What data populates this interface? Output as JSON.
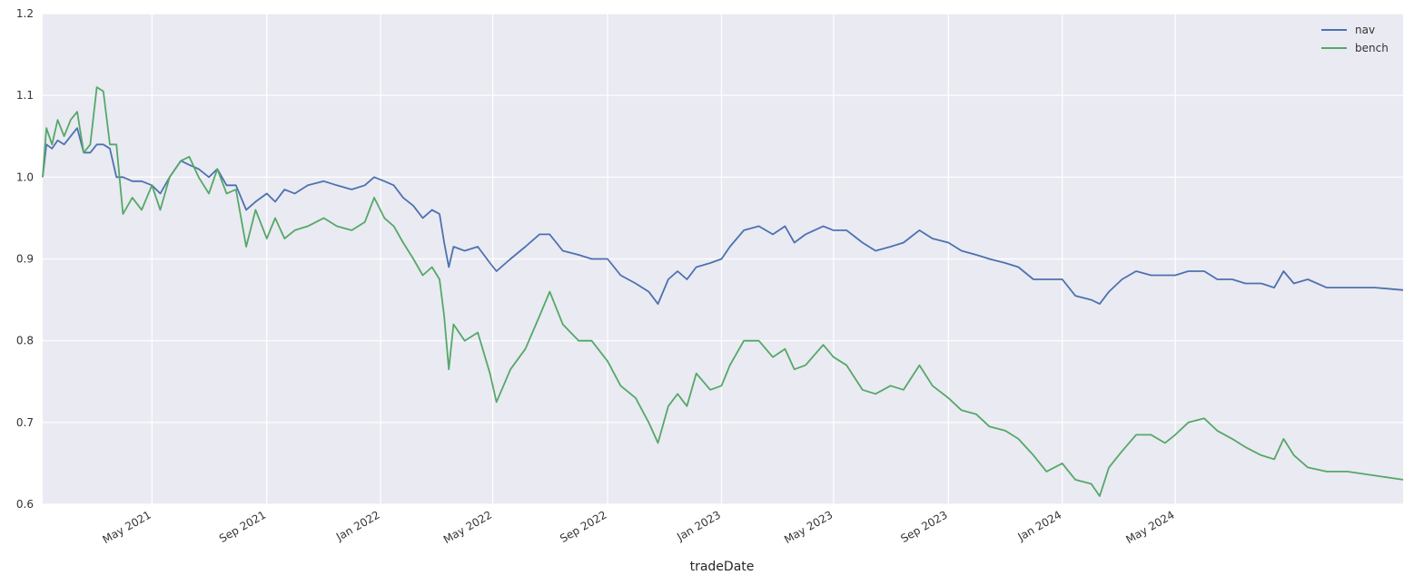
{
  "chart_data": {
    "type": "line",
    "title": "",
    "xlabel": "tradeDate",
    "ylabel": "",
    "x_range": [
      "2021-01-04",
      "2024-12-31"
    ],
    "ylim": [
      0.6,
      1.2
    ],
    "grid": true,
    "legend_position": "top-right",
    "y_ticks": [
      0.6,
      0.7,
      0.8,
      0.9,
      1.0,
      1.1,
      1.2
    ],
    "y_tick_labels": [
      "0.6",
      "0.7",
      "0.8",
      "0.9",
      "1.0",
      "1.1",
      "1.2"
    ],
    "x_ticks": [
      "2021-05-01",
      "2021-09-01",
      "2022-01-01",
      "2022-05-01",
      "2022-09-01",
      "2023-01-01",
      "2023-05-01",
      "2023-09-01",
      "2024-01-01",
      "2024-05-01"
    ],
    "x_tick_labels": [
      "May 2021",
      "Sep 2021",
      "Jan 2022",
      "May 2022",
      "Sep 2022",
      "Jan 2023",
      "May 2023",
      "Sep 2023",
      "Jan 2024",
      "May 2024"
    ],
    "series": [
      {
        "name": "nav",
        "color": "#4c72b0",
        "points": [
          [
            "2021-01-04",
            1.0
          ],
          [
            "2021-01-08",
            1.04
          ],
          [
            "2021-01-14",
            1.035
          ],
          [
            "2021-01-20",
            1.045
          ],
          [
            "2021-01-27",
            1.04
          ],
          [
            "2021-02-03",
            1.05
          ],
          [
            "2021-02-10",
            1.06
          ],
          [
            "2021-02-17",
            1.03
          ],
          [
            "2021-02-24",
            1.03
          ],
          [
            "2021-03-03",
            1.04
          ],
          [
            "2021-03-10",
            1.04
          ],
          [
            "2021-03-17",
            1.035
          ],
          [
            "2021-03-24",
            1.0
          ],
          [
            "2021-03-31",
            1.0
          ],
          [
            "2021-04-10",
            0.995
          ],
          [
            "2021-04-20",
            0.995
          ],
          [
            "2021-05-01",
            0.99
          ],
          [
            "2021-05-10",
            0.98
          ],
          [
            "2021-05-20",
            1.0
          ],
          [
            "2021-06-01",
            1.02
          ],
          [
            "2021-06-10",
            1.015
          ],
          [
            "2021-06-20",
            1.01
          ],
          [
            "2021-07-01",
            1.0
          ],
          [
            "2021-07-10",
            1.01
          ],
          [
            "2021-07-20",
            0.99
          ],
          [
            "2021-07-30",
            0.99
          ],
          [
            "2021-08-10",
            0.96
          ],
          [
            "2021-08-20",
            0.97
          ],
          [
            "2021-09-01",
            0.98
          ],
          [
            "2021-09-10",
            0.97
          ],
          [
            "2021-09-20",
            0.985
          ],
          [
            "2021-10-01",
            0.98
          ],
          [
            "2021-10-15",
            0.99
          ],
          [
            "2021-11-01",
            0.995
          ],
          [
            "2021-11-15",
            0.99
          ],
          [
            "2021-12-01",
            0.985
          ],
          [
            "2021-12-15",
            0.99
          ],
          [
            "2021-12-25",
            1.0
          ],
          [
            "2022-01-05",
            0.995
          ],
          [
            "2022-01-15",
            0.99
          ],
          [
            "2022-01-25",
            0.975
          ],
          [
            "2022-02-05",
            0.965
          ],
          [
            "2022-02-15",
            0.95
          ],
          [
            "2022-02-25",
            0.96
          ],
          [
            "2022-03-05",
            0.955
          ],
          [
            "2022-03-10",
            0.92
          ],
          [
            "2022-03-15",
            0.89
          ],
          [
            "2022-03-20",
            0.915
          ],
          [
            "2022-04-01",
            0.91
          ],
          [
            "2022-04-15",
            0.915
          ],
          [
            "2022-04-28",
            0.895
          ],
          [
            "2022-05-05",
            0.885
          ],
          [
            "2022-05-20",
            0.9
          ],
          [
            "2022-06-05",
            0.915
          ],
          [
            "2022-06-20",
            0.93
          ],
          [
            "2022-07-01",
            0.93
          ],
          [
            "2022-07-15",
            0.91
          ],
          [
            "2022-08-01",
            0.905
          ],
          [
            "2022-08-15",
            0.9
          ],
          [
            "2022-09-01",
            0.9
          ],
          [
            "2022-09-15",
            0.88
          ],
          [
            "2022-10-01",
            0.87
          ],
          [
            "2022-10-15",
            0.86
          ],
          [
            "2022-10-25",
            0.845
          ],
          [
            "2022-11-05",
            0.875
          ],
          [
            "2022-11-15",
            0.885
          ],
          [
            "2022-11-25",
            0.875
          ],
          [
            "2022-12-05",
            0.89
          ],
          [
            "2022-12-20",
            0.895
          ],
          [
            "2023-01-01",
            0.9
          ],
          [
            "2023-01-10",
            0.915
          ],
          [
            "2023-01-25",
            0.935
          ],
          [
            "2023-02-10",
            0.94
          ],
          [
            "2023-02-25",
            0.93
          ],
          [
            "2023-03-10",
            0.94
          ],
          [
            "2023-03-20",
            0.92
          ],
          [
            "2023-04-01",
            0.93
          ],
          [
            "2023-04-20",
            0.94
          ],
          [
            "2023-05-01",
            0.935
          ],
          [
            "2023-05-15",
            0.935
          ],
          [
            "2023-06-01",
            0.92
          ],
          [
            "2023-06-15",
            0.91
          ],
          [
            "2023-07-01",
            0.915
          ],
          [
            "2023-07-15",
            0.92
          ],
          [
            "2023-08-01",
            0.935
          ],
          [
            "2023-08-15",
            0.925
          ],
          [
            "2023-09-01",
            0.92
          ],
          [
            "2023-09-15",
            0.91
          ],
          [
            "2023-10-01",
            0.905
          ],
          [
            "2023-10-15",
            0.9
          ],
          [
            "2023-11-01",
            0.895
          ],
          [
            "2023-11-15",
            0.89
          ],
          [
            "2023-12-01",
            0.875
          ],
          [
            "2023-12-15",
            0.875
          ],
          [
            "2024-01-01",
            0.875
          ],
          [
            "2024-01-15",
            0.855
          ],
          [
            "2024-02-01",
            0.85
          ],
          [
            "2024-02-10",
            0.845
          ],
          [
            "2024-02-20",
            0.86
          ],
          [
            "2024-03-05",
            0.875
          ],
          [
            "2024-03-20",
            0.885
          ],
          [
            "2024-04-05",
            0.88
          ],
          [
            "2024-04-20",
            0.88
          ],
          [
            "2024-05-01",
            0.88
          ],
          [
            "2024-05-15",
            0.885
          ],
          [
            "2024-06-01",
            0.885
          ],
          [
            "2024-06-15",
            0.875
          ],
          [
            "2024-07-01",
            0.875
          ],
          [
            "2024-07-15",
            0.87
          ],
          [
            "2024-08-01",
            0.87
          ],
          [
            "2024-08-15",
            0.865
          ],
          [
            "2024-08-25",
            0.885
          ],
          [
            "2024-09-05",
            0.87
          ],
          [
            "2024-09-20",
            0.875
          ],
          [
            "2024-10-10",
            0.865
          ],
          [
            "2024-11-01",
            0.865
          ],
          [
            "2024-12-01",
            0.865
          ],
          [
            "2024-12-31",
            0.862
          ]
        ]
      },
      {
        "name": "bench",
        "color": "#55a868",
        "points": [
          [
            "2021-01-04",
            1.0
          ],
          [
            "2021-01-08",
            1.06
          ],
          [
            "2021-01-14",
            1.04
          ],
          [
            "2021-01-20",
            1.07
          ],
          [
            "2021-01-27",
            1.05
          ],
          [
            "2021-02-03",
            1.07
          ],
          [
            "2021-02-10",
            1.08
          ],
          [
            "2021-02-17",
            1.03
          ],
          [
            "2021-02-24",
            1.04
          ],
          [
            "2021-03-03",
            1.11
          ],
          [
            "2021-03-10",
            1.105
          ],
          [
            "2021-03-17",
            1.04
          ],
          [
            "2021-03-24",
            1.04
          ],
          [
            "2021-03-31",
            0.955
          ],
          [
            "2021-04-10",
            0.975
          ],
          [
            "2021-04-20",
            0.96
          ],
          [
            "2021-05-01",
            0.99
          ],
          [
            "2021-05-10",
            0.96
          ],
          [
            "2021-05-20",
            1.0
          ],
          [
            "2021-06-01",
            1.02
          ],
          [
            "2021-06-10",
            1.025
          ],
          [
            "2021-06-20",
            1.0
          ],
          [
            "2021-07-01",
            0.98
          ],
          [
            "2021-07-10",
            1.01
          ],
          [
            "2021-07-20",
            0.98
          ],
          [
            "2021-07-30",
            0.985
          ],
          [
            "2021-08-10",
            0.915
          ],
          [
            "2021-08-20",
            0.96
          ],
          [
            "2021-09-01",
            0.925
          ],
          [
            "2021-09-10",
            0.95
          ],
          [
            "2021-09-20",
            0.925
          ],
          [
            "2021-10-01",
            0.935
          ],
          [
            "2021-10-15",
            0.94
          ],
          [
            "2021-11-01",
            0.95
          ],
          [
            "2021-11-15",
            0.94
          ],
          [
            "2021-12-01",
            0.935
          ],
          [
            "2021-12-15",
            0.945
          ],
          [
            "2021-12-25",
            0.975
          ],
          [
            "2022-01-05",
            0.95
          ],
          [
            "2022-01-15",
            0.94
          ],
          [
            "2022-01-25",
            0.92
          ],
          [
            "2022-02-05",
            0.9
          ],
          [
            "2022-02-15",
            0.88
          ],
          [
            "2022-02-25",
            0.89
          ],
          [
            "2022-03-05",
            0.875
          ],
          [
            "2022-03-10",
            0.83
          ],
          [
            "2022-03-15",
            0.765
          ],
          [
            "2022-03-20",
            0.82
          ],
          [
            "2022-04-01",
            0.8
          ],
          [
            "2022-04-15",
            0.81
          ],
          [
            "2022-04-28",
            0.76
          ],
          [
            "2022-05-05",
            0.725
          ],
          [
            "2022-05-20",
            0.765
          ],
          [
            "2022-06-05",
            0.79
          ],
          [
            "2022-06-20",
            0.83
          ],
          [
            "2022-07-01",
            0.86
          ],
          [
            "2022-07-15",
            0.82
          ],
          [
            "2022-08-01",
            0.8
          ],
          [
            "2022-08-15",
            0.8
          ],
          [
            "2022-09-01",
            0.775
          ],
          [
            "2022-09-15",
            0.745
          ],
          [
            "2022-10-01",
            0.73
          ],
          [
            "2022-10-15",
            0.7
          ],
          [
            "2022-10-25",
            0.675
          ],
          [
            "2022-11-05",
            0.72
          ],
          [
            "2022-11-15",
            0.735
          ],
          [
            "2022-11-25",
            0.72
          ],
          [
            "2022-12-05",
            0.76
          ],
          [
            "2022-12-20",
            0.74
          ],
          [
            "2023-01-01",
            0.745
          ],
          [
            "2023-01-10",
            0.77
          ],
          [
            "2023-01-25",
            0.8
          ],
          [
            "2023-02-10",
            0.8
          ],
          [
            "2023-02-25",
            0.78
          ],
          [
            "2023-03-10",
            0.79
          ],
          [
            "2023-03-20",
            0.765
          ],
          [
            "2023-04-01",
            0.77
          ],
          [
            "2023-04-20",
            0.795
          ],
          [
            "2023-05-01",
            0.78
          ],
          [
            "2023-05-15",
            0.77
          ],
          [
            "2023-06-01",
            0.74
          ],
          [
            "2023-06-15",
            0.735
          ],
          [
            "2023-07-01",
            0.745
          ],
          [
            "2023-07-15",
            0.74
          ],
          [
            "2023-08-01",
            0.77
          ],
          [
            "2023-08-15",
            0.745
          ],
          [
            "2023-09-01",
            0.73
          ],
          [
            "2023-09-15",
            0.715
          ],
          [
            "2023-10-01",
            0.71
          ],
          [
            "2023-10-15",
            0.695
          ],
          [
            "2023-11-01",
            0.69
          ],
          [
            "2023-11-15",
            0.68
          ],
          [
            "2023-12-01",
            0.66
          ],
          [
            "2023-12-15",
            0.64
          ],
          [
            "2024-01-01",
            0.65
          ],
          [
            "2024-01-15",
            0.63
          ],
          [
            "2024-02-01",
            0.625
          ],
          [
            "2024-02-10",
            0.61
          ],
          [
            "2024-02-20",
            0.645
          ],
          [
            "2024-03-05",
            0.665
          ],
          [
            "2024-03-20",
            0.685
          ],
          [
            "2024-04-05",
            0.685
          ],
          [
            "2024-04-20",
            0.675
          ],
          [
            "2024-05-01",
            0.685
          ],
          [
            "2024-05-15",
            0.7
          ],
          [
            "2024-06-01",
            0.705
          ],
          [
            "2024-06-15",
            0.69
          ],
          [
            "2024-07-01",
            0.68
          ],
          [
            "2024-07-15",
            0.67
          ],
          [
            "2024-08-01",
            0.66
          ],
          [
            "2024-08-15",
            0.655
          ],
          [
            "2024-08-25",
            0.68
          ],
          [
            "2024-09-05",
            0.66
          ],
          [
            "2024-09-20",
            0.645
          ],
          [
            "2024-10-10",
            0.64
          ],
          [
            "2024-11-01",
            0.64
          ],
          [
            "2024-12-01",
            0.635
          ],
          [
            "2024-12-31",
            0.63
          ]
        ]
      }
    ]
  }
}
